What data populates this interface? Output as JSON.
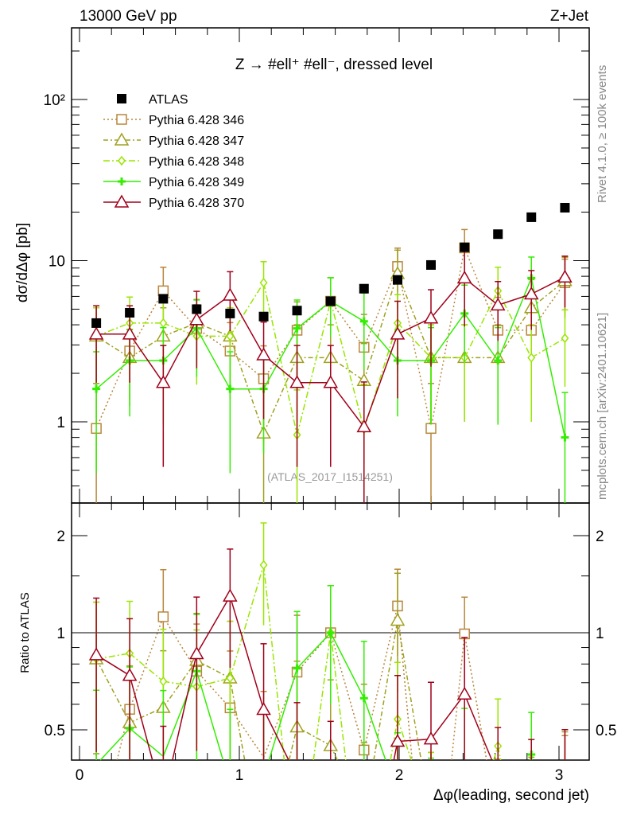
{
  "header": {
    "left": "13000 GeV pp",
    "right": "Z+Jet"
  },
  "plot_label": "Z → #ell⁺ #ell⁻, dressed level",
  "watermark": "(ATLAS_2017_I1514251)",
  "side_text_top": "Rivet 4.1.0, ≥ 100k events",
  "side_text_bottom": "mcplots.cern.ch [arXiv:2401.10621]",
  "chart_data": {
    "type": "scatter",
    "title": "Z → #ell⁺ #ell⁻, dressed level",
    "xlabel": "Δφ(leading, second jet)",
    "ylabel": "dσ/dΔφ [pb]",
    "ratio_ylabel": "Ratio to ATLAS",
    "xlim": [
      -0.05,
      3.19
    ],
    "ylim": [
      0.313,
      278
    ],
    "yscale": "log",
    "ratio_ylim": [
      0.403,
      2.52
    ],
    "x_ticks": [
      "0",
      "1",
      "2",
      "3"
    ],
    "y_ticks": [
      "1",
      "10",
      "10²"
    ],
    "ratio_ticks": [
      "0.5",
      "1",
      "2"
    ],
    "legend_position": "top-left",
    "x": [
      0.105,
      0.314,
      0.524,
      0.733,
      0.942,
      1.152,
      1.361,
      1.571,
      1.78,
      1.99,
      2.199,
      2.409,
      2.618,
      2.827,
      3.037
    ],
    "reference": {
      "name": "ATLAS",
      "color": "#000000",
      "values": [
        4.1,
        4.75,
        5.8,
        5.0,
        4.7,
        4.5,
        4.9,
        5.6,
        6.7,
        7.6,
        9.4,
        12.1,
        14.6,
        18.6,
        21.3
      ]
    },
    "series": [
      {
        "name": "Pythia 6.428 346",
        "color": "#b8863b",
        "marker": "square",
        "dash": "2,3",
        "values": [
          0.91,
          2.75,
          6.5,
          3.8,
          2.75,
          1.85,
          3.7,
          5.6,
          2.9,
          9.2,
          0.91,
          12.0,
          3.7,
          3.7,
          7.3
        ],
        "rel_err": [
          0.9,
          0.5,
          0.4,
          0.4,
          0.5,
          0.6,
          0.5,
          0.4,
          0.6,
          0.3,
          0.9,
          0.3,
          0.6,
          0.6,
          0.4
        ]
      },
      {
        "name": "Pythia 6.428 347",
        "color": "#a0a020",
        "marker": "triangle",
        "dash": "6,3,2,3",
        "values": [
          3.4,
          2.5,
          3.4,
          4.1,
          3.4,
          0.85,
          2.5,
          2.5,
          1.8,
          8.3,
          2.5,
          2.5,
          2.5,
          5.1,
          7.5
        ],
        "rel_err": [
          0.5,
          0.5,
          0.5,
          0.4,
          0.5,
          0.9,
          0.6,
          0.6,
          0.7,
          0.4,
          0.6,
          0.6,
          0.6,
          0.5,
          0.4
        ]
      },
      {
        "name": "Pythia 6.428 348",
        "color": "#99e600",
        "marker": "diamond",
        "dash": "8,3,2,3",
        "values": [
          3.4,
          4.1,
          4.1,
          3.4,
          3.4,
          7.3,
          0.83,
          5.6,
          0.9,
          4.1,
          2.5,
          2.5,
          6.5,
          2.5,
          3.3
        ],
        "rel_err": [
          0.5,
          0.45,
          0.45,
          0.5,
          0.5,
          0.35,
          0.9,
          0.4,
          0.9,
          0.5,
          0.6,
          0.6,
          0.4,
          0.6,
          0.5
        ]
      },
      {
        "name": "Pythia 6.428 349",
        "color": "#33ee00",
        "marker": "plus",
        "dash": "",
        "values": [
          1.6,
          2.4,
          2.4,
          3.8,
          1.6,
          1.6,
          3.8,
          5.6,
          4.2,
          2.4,
          2.4,
          4.7,
          2.4,
          7.8,
          0.8
        ],
        "rel_err": [
          0.7,
          0.55,
          0.6,
          0.5,
          0.7,
          0.6,
          0.5,
          0.4,
          0.5,
          0.55,
          0.6,
          0.5,
          0.6,
          0.35,
          0.9
        ]
      },
      {
        "name": "Pythia 6.428 370",
        "color": "#a0001a",
        "marker": "triangle",
        "dash": "",
        "values": [
          3.5,
          3.5,
          1.75,
          4.3,
          6.1,
          2.6,
          1.75,
          1.75,
          0.93,
          3.5,
          4.4,
          7.8,
          5.3,
          6.2,
          7.9
        ],
        "rel_err": [
          0.5,
          0.5,
          0.7,
          0.5,
          0.4,
          0.6,
          0.7,
          0.7,
          0.9,
          0.6,
          0.5,
          0.5,
          0.4,
          0.4,
          0.35
        ]
      }
    ]
  }
}
